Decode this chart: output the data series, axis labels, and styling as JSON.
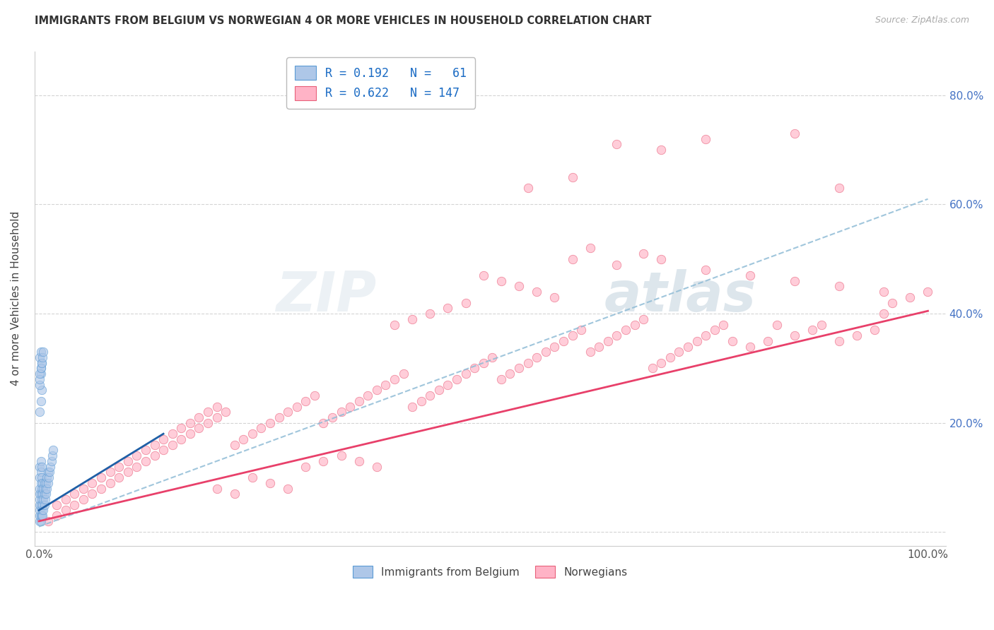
{
  "title": "IMMIGRANTS FROM BELGIUM VS NORWEGIAN 4 OR MORE VEHICLES IN HOUSEHOLD CORRELATION CHART",
  "source": "Source: ZipAtlas.com",
  "ylabel": "4 or more Vehicles in Household",
  "background_color": "#ffffff",
  "grid_color": "#d0d0d0",
  "xlim": [
    -0.005,
    1.02
  ],
  "ylim": [
    -0.025,
    0.88
  ],
  "color_blue_fill": "#aec7e8",
  "color_pink_fill": "#ffb3c6",
  "color_blue_edge": "#5b9bd5",
  "color_pink_edge": "#e8607a",
  "color_blue_line": "#1f5fa6",
  "color_pink_line": "#e8406a",
  "color_blue_dash": "#90bcd6",
  "legend_text_color": "#1a6bc4",
  "marker_size": 80,
  "marker_alpha": 0.65,
  "belgium_x": [
    0.001,
    0.001,
    0.001,
    0.001,
    0.001,
    0.001,
    0.001,
    0.001,
    0.001,
    0.002,
    0.002,
    0.002,
    0.002,
    0.002,
    0.002,
    0.002,
    0.003,
    0.003,
    0.003,
    0.003,
    0.003,
    0.003,
    0.004,
    0.004,
    0.004,
    0.004,
    0.005,
    0.005,
    0.005,
    0.006,
    0.006,
    0.006,
    0.007,
    0.007,
    0.008,
    0.008,
    0.009,
    0.009,
    0.01,
    0.01,
    0.011,
    0.012,
    0.013,
    0.014,
    0.015,
    0.016,
    0.001,
    0.002,
    0.003,
    0.001,
    0.002,
    0.001,
    0.002,
    0.003,
    0.001,
    0.002,
    0.001,
    0.002,
    0.003,
    0.004,
    0.005
  ],
  "belgium_y": [
    0.02,
    0.03,
    0.04,
    0.05,
    0.06,
    0.07,
    0.08,
    0.1,
    0.12,
    0.02,
    0.03,
    0.05,
    0.07,
    0.09,
    0.11,
    0.13,
    0.03,
    0.04,
    0.06,
    0.08,
    0.1,
    0.12,
    0.03,
    0.05,
    0.07,
    0.09,
    0.04,
    0.06,
    0.08,
    0.05,
    0.07,
    0.09,
    0.06,
    0.08,
    0.07,
    0.09,
    0.08,
    0.1,
    0.09,
    0.11,
    0.1,
    0.11,
    0.12,
    0.13,
    0.14,
    0.15,
    0.22,
    0.24,
    0.26,
    0.27,
    0.29,
    0.28,
    0.3,
    0.31,
    0.32,
    0.33,
    0.29,
    0.3,
    0.31,
    0.32,
    0.33
  ],
  "norwegian_x": [
    0.01,
    0.02,
    0.02,
    0.03,
    0.03,
    0.04,
    0.04,
    0.05,
    0.05,
    0.06,
    0.06,
    0.07,
    0.07,
    0.08,
    0.08,
    0.09,
    0.09,
    0.1,
    0.1,
    0.11,
    0.11,
    0.12,
    0.12,
    0.13,
    0.13,
    0.14,
    0.14,
    0.15,
    0.15,
    0.16,
    0.16,
    0.17,
    0.17,
    0.18,
    0.18,
    0.19,
    0.19,
    0.2,
    0.2,
    0.21,
    0.22,
    0.23,
    0.24,
    0.25,
    0.26,
    0.27,
    0.28,
    0.29,
    0.3,
    0.31,
    0.32,
    0.33,
    0.34,
    0.35,
    0.36,
    0.37,
    0.38,
    0.39,
    0.4,
    0.41,
    0.42,
    0.43,
    0.44,
    0.45,
    0.46,
    0.47,
    0.48,
    0.49,
    0.5,
    0.51,
    0.52,
    0.53,
    0.54,
    0.55,
    0.56,
    0.57,
    0.58,
    0.59,
    0.6,
    0.61,
    0.62,
    0.63,
    0.64,
    0.65,
    0.66,
    0.67,
    0.68,
    0.69,
    0.7,
    0.71,
    0.72,
    0.73,
    0.74,
    0.75,
    0.76,
    0.77,
    0.78,
    0.8,
    0.82,
    0.83,
    0.85,
    0.87,
    0.88,
    0.9,
    0.92,
    0.94,
    0.95,
    0.96,
    0.98,
    1.0,
    0.5,
    0.52,
    0.54,
    0.56,
    0.58,
    0.48,
    0.46,
    0.44,
    0.42,
    0.4,
    0.38,
    0.36,
    0.34,
    0.32,
    0.3,
    0.28,
    0.26,
    0.24,
    0.22,
    0.2,
    0.6,
    0.62,
    0.65,
    0.68,
    0.7,
    0.75,
    0.8,
    0.85,
    0.9,
    0.95,
    0.55,
    0.6,
    0.65,
    0.7,
    0.75,
    0.85,
    0.9
  ],
  "norwegian_y": [
    0.02,
    0.03,
    0.05,
    0.04,
    0.06,
    0.05,
    0.07,
    0.06,
    0.08,
    0.07,
    0.09,
    0.08,
    0.1,
    0.09,
    0.11,
    0.1,
    0.12,
    0.11,
    0.13,
    0.12,
    0.14,
    0.13,
    0.15,
    0.14,
    0.16,
    0.15,
    0.17,
    0.16,
    0.18,
    0.17,
    0.19,
    0.18,
    0.2,
    0.19,
    0.21,
    0.2,
    0.22,
    0.21,
    0.23,
    0.22,
    0.16,
    0.17,
    0.18,
    0.19,
    0.2,
    0.21,
    0.22,
    0.23,
    0.24,
    0.25,
    0.2,
    0.21,
    0.22,
    0.23,
    0.24,
    0.25,
    0.26,
    0.27,
    0.28,
    0.29,
    0.23,
    0.24,
    0.25,
    0.26,
    0.27,
    0.28,
    0.29,
    0.3,
    0.31,
    0.32,
    0.28,
    0.29,
    0.3,
    0.31,
    0.32,
    0.33,
    0.34,
    0.35,
    0.36,
    0.37,
    0.33,
    0.34,
    0.35,
    0.36,
    0.37,
    0.38,
    0.39,
    0.3,
    0.31,
    0.32,
    0.33,
    0.34,
    0.35,
    0.36,
    0.37,
    0.38,
    0.35,
    0.34,
    0.35,
    0.38,
    0.36,
    0.37,
    0.38,
    0.35,
    0.36,
    0.37,
    0.4,
    0.42,
    0.43,
    0.44,
    0.47,
    0.46,
    0.45,
    0.44,
    0.43,
    0.42,
    0.41,
    0.4,
    0.39,
    0.38,
    0.12,
    0.13,
    0.14,
    0.13,
    0.12,
    0.08,
    0.09,
    0.1,
    0.07,
    0.08,
    0.5,
    0.52,
    0.49,
    0.51,
    0.5,
    0.48,
    0.47,
    0.46,
    0.45,
    0.44,
    0.63,
    0.65,
    0.71,
    0.7,
    0.72,
    0.73,
    0.63
  ]
}
